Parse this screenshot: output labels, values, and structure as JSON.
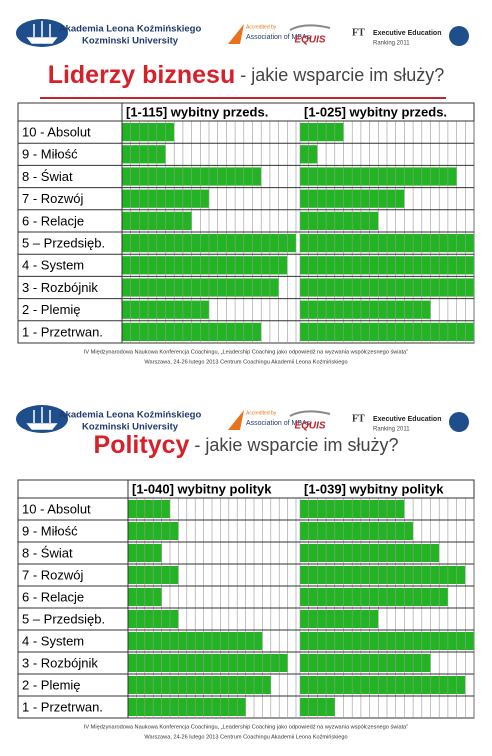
{
  "slides": [
    {
      "header": {
        "university": "Akademia Leona Koźmińskiego",
        "university_en": "Kozminski University",
        "amba_top": "Accredited by",
        "amba": "Association of MBAs",
        "equis": "EQUIS",
        "ft": "FT",
        "ft_title": "Executive Education",
        "ft_sub": "Ranking 2011"
      },
      "footer": [
        "IV Międzynarodowa Naukowa Konferencja Coachingu, „Leadership Coaching jako odpowiedź na wyzwania współczesnego świata”",
        "Warszawa, 24-26 lutego 2013 Centrum Coachingu Akademii Leona Koźmińskiego"
      ]
    },
    {
      "header": {
        "university": "Akademia Leona Koźmińskiego",
        "university_en": "Kozminski University",
        "amba_top": "Accredited by",
        "amba": "Association of MBAs",
        "equis": "EQUIS",
        "ft": "FT",
        "ft_title": "Executive Education",
        "ft_sub": "Ranking 2011"
      },
      "footer": [
        "IV Międzynarodowa Naukowa Konferencja Coachingu, „Leadership Coaching jako odpowiedź na wyzwania współczesnego świata”",
        "Warszawa, 24-26 lutego 2013 Centrum Coachingu Akademii Leona Koźmińskiego"
      ]
    }
  ],
  "chart_data": [
    {
      "type": "bar",
      "title": "Liderzy biznesu",
      "subtitle": " - jakie wsparcie im służy?",
      "categories": [
        "10 - Absolut",
        "9 - Miłość",
        "8 - Świat",
        "7 - Rozwój",
        "6 - Relacje",
        "5 – Przedsięb.",
        "4 - System",
        "3 - Rozbójnik",
        "2 - Plemię",
        "1 - Przetrwan."
      ],
      "xlim": [
        0,
        20
      ],
      "series": [
        {
          "name": "[1-115] wybitny przeds.",
          "color": "#22b422",
          "values": [
            6,
            5,
            16,
            10,
            8,
            20,
            19,
            18,
            10,
            16
          ]
        },
        {
          "name": "[1-025] wybitny przeds.",
          "color": "#22b422",
          "values": [
            5,
            2,
            18,
            12,
            9,
            20,
            20,
            20,
            15,
            20
          ]
        }
      ]
    },
    {
      "type": "bar",
      "title": "Politycy",
      "subtitle": " - jakie wsparcie im służy?",
      "categories": [
        "10 - Absolut",
        "9 - Miłość",
        "8 - Świat",
        "7 - Rozwój",
        "6 - Relacje",
        "5 – Przedsięb.",
        "4 - System",
        "3 - Rozbójnik",
        "2 - Plemię",
        "1 - Przetrwan."
      ],
      "xlim": [
        0,
        20
      ],
      "series": [
        {
          "name": "[1-040] wybitny polityk",
          "color": "#22b422",
          "values": [
            5,
            6,
            4,
            6,
            4,
            6,
            16,
            19,
            17,
            14
          ]
        },
        {
          "name": "[1-039] wybitny polityk",
          "color": "#22b422",
          "values": [
            12,
            13,
            16,
            19,
            17,
            9,
            20,
            15,
            19,
            4
          ]
        }
      ]
    }
  ]
}
